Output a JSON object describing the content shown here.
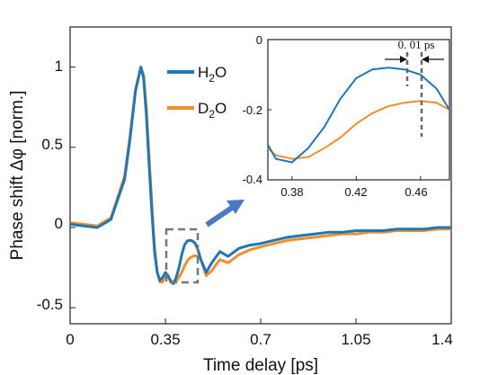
{
  "chart_data": {
    "type": "line",
    "xlabel": "Time delay [ps]",
    "ylabel": "Phase shift Δφ [norm.]",
    "xlim": [
      0,
      1.4
    ],
    "ylim": [
      -0.6,
      1.25
    ],
    "xticks": [
      "0",
      "0.35",
      "0.7",
      "1.05",
      "1.4"
    ],
    "yticks": [
      "-0.5",
      "0",
      "0.5",
      "1"
    ],
    "legend_position": "top-center",
    "grid": false,
    "series": [
      {
        "name": "H2O",
        "name_base": "H",
        "name_sub": "2",
        "name_tail": "O",
        "color": "#1f77b4",
        "x": [
          0,
          0.05,
          0.1,
          0.15,
          0.2,
          0.22,
          0.24,
          0.26,
          0.27,
          0.28,
          0.29,
          0.3,
          0.31,
          0.32,
          0.33,
          0.34,
          0.35,
          0.36,
          0.37,
          0.38,
          0.39,
          0.4,
          0.41,
          0.42,
          0.43,
          0.44,
          0.45,
          0.46,
          0.47,
          0.48,
          0.5,
          0.52,
          0.55,
          0.58,
          0.62,
          0.66,
          0.7,
          0.75,
          0.8,
          0.85,
          0.9,
          0.95,
          1.0,
          1.05,
          1.1,
          1.15,
          1.2,
          1.25,
          1.3,
          1.35,
          1.4
        ],
        "values": [
          0.02,
          0.01,
          0.0,
          0.05,
          0.3,
          0.55,
          0.85,
          1.0,
          0.93,
          0.7,
          0.4,
          0.1,
          -0.15,
          -0.28,
          -0.33,
          -0.31,
          -0.28,
          -0.3,
          -0.34,
          -0.35,
          -0.31,
          -0.25,
          -0.17,
          -0.11,
          -0.085,
          -0.08,
          -0.085,
          -0.1,
          -0.14,
          -0.2,
          -0.28,
          -0.22,
          -0.15,
          -0.18,
          -0.13,
          -0.11,
          -0.1,
          -0.08,
          -0.06,
          -0.05,
          -0.04,
          -0.03,
          -0.03,
          -0.02,
          -0.02,
          -0.02,
          -0.01,
          -0.01,
          -0.01,
          0.0,
          0.0
        ]
      },
      {
        "name": "D2O",
        "name_base": "D",
        "name_sub": "2",
        "name_tail": "O",
        "color": "#f28e2b",
        "x": [
          0,
          0.05,
          0.1,
          0.15,
          0.2,
          0.22,
          0.24,
          0.26,
          0.27,
          0.28,
          0.29,
          0.3,
          0.31,
          0.32,
          0.33,
          0.34,
          0.35,
          0.36,
          0.37,
          0.38,
          0.39,
          0.4,
          0.41,
          0.42,
          0.43,
          0.44,
          0.45,
          0.46,
          0.47,
          0.48,
          0.5,
          0.52,
          0.55,
          0.58,
          0.62,
          0.66,
          0.7,
          0.75,
          0.8,
          0.85,
          0.9,
          0.95,
          1.0,
          1.05,
          1.1,
          1.15,
          1.2,
          1.25,
          1.3,
          1.35,
          1.4
        ],
        "values": [
          0.03,
          0.02,
          0.01,
          0.06,
          0.32,
          0.57,
          0.86,
          1.0,
          0.95,
          0.75,
          0.45,
          0.15,
          -0.12,
          -0.28,
          -0.34,
          -0.34,
          -0.28,
          -0.31,
          -0.33,
          -0.34,
          -0.335,
          -0.31,
          -0.28,
          -0.24,
          -0.21,
          -0.19,
          -0.18,
          -0.175,
          -0.18,
          -0.2,
          -0.3,
          -0.27,
          -0.2,
          -0.22,
          -0.17,
          -0.14,
          -0.12,
          -0.1,
          -0.08,
          -0.07,
          -0.06,
          -0.05,
          -0.04,
          -0.04,
          -0.03,
          -0.03,
          -0.02,
          -0.02,
          -0.02,
          -0.01,
          -0.01
        ]
      }
    ],
    "inset": {
      "xlim": [
        0.365,
        0.478
      ],
      "ylim": [
        -0.4,
        0.0
      ],
      "xticks": [
        "0.38",
        "0.42",
        "0.46"
      ],
      "yticks": [
        "0",
        "-0.2",
        "-0.4"
      ],
      "annotation": "0. 01 ps",
      "markers_x": [
        0.45,
        0.46
      ]
    }
  }
}
